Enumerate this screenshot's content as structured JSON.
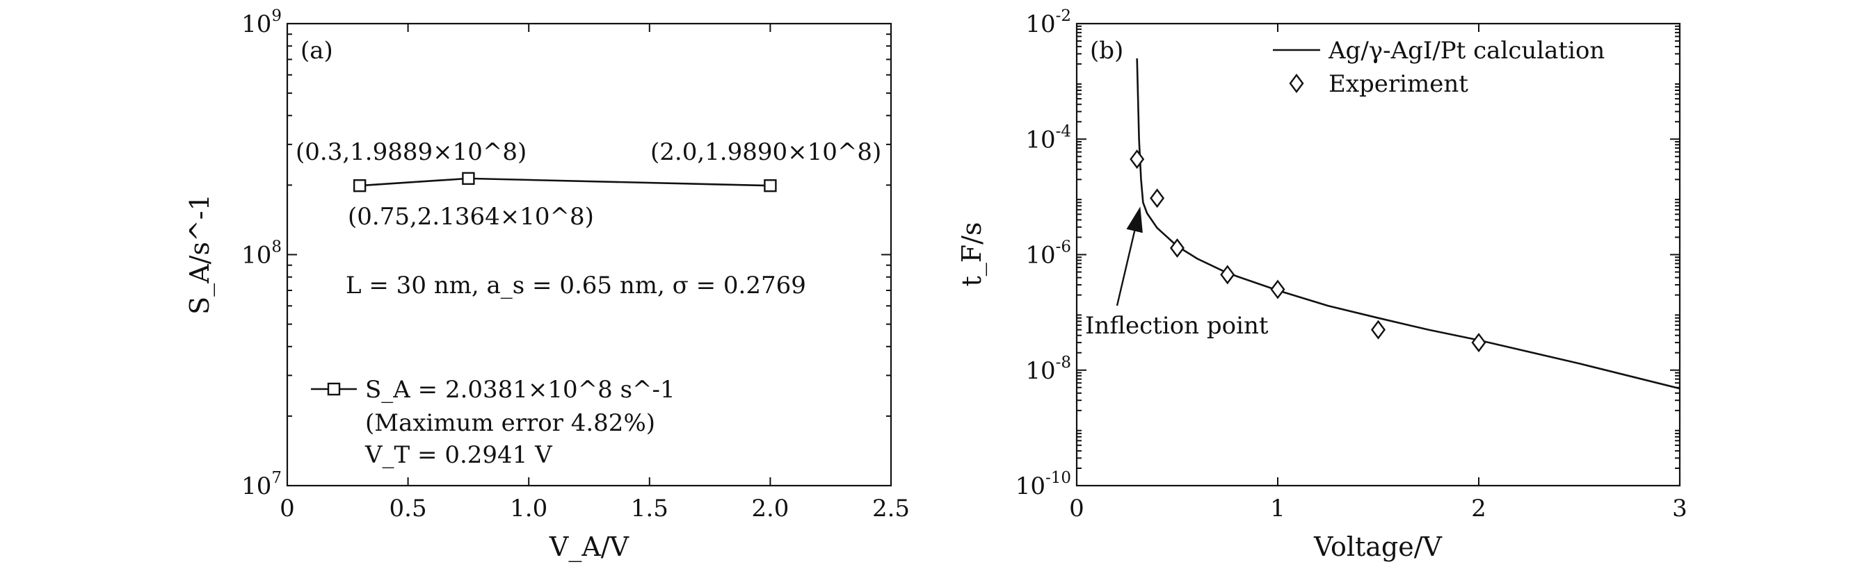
{
  "chart_data": [
    {
      "type": "line",
      "panel_label": "(a)",
      "xlabel": "V_A/V",
      "ylabel": "S_A/s^-1",
      "xlim": [
        0,
        2.5
      ],
      "ylim": [
        10000000,
        1000000000
      ],
      "yscale": "log",
      "x_ticks": [
        "0",
        "0.5",
        "1.0",
        "1.5",
        "2.0",
        "2.5"
      ],
      "y_ticks": [
        "10^7",
        "10^8",
        "10^9"
      ],
      "series": [
        {
          "name": "S_A = 2.0381×10^8 s^-1",
          "x": [
            0.3,
            0.75,
            2.0
          ],
          "y": [
            198890000,
            213640000,
            198900000
          ]
        }
      ],
      "point_labels": [
        "(0.3,1.9889×10^8)",
        "(0.75,2.1364×10^8)",
        "(2.0,1.9890×10^8)"
      ],
      "annotation": "L = 30 nm, a_s = 0.65 nm, σ = 0.2769",
      "legend_lines": [
        "S_A = 2.0381×10^8 s^-1",
        "(Maximum error 4.82%)",
        "V_T = 0.2941 V"
      ],
      "legend_position": "bottom-left"
    },
    {
      "type": "line",
      "panel_label": "(b)",
      "xlabel": "Voltage/V",
      "ylabel": "t_F/s",
      "xlim": [
        0,
        3
      ],
      "ylim": [
        1e-10,
        0.01
      ],
      "yscale": "log",
      "x_ticks": [
        "0",
        "1",
        "2",
        "3"
      ],
      "y_ticks": [
        "10^-10",
        "10^-8",
        "10^-6",
        "10^-4",
        "10^-2"
      ],
      "series": [
        {
          "name": "Ag/γ-AgI/Pt calculation",
          "style": "line",
          "x": [
            0.3,
            0.31,
            0.32,
            0.33,
            0.35,
            0.4,
            0.5,
            0.6,
            0.75,
            1.0,
            1.25,
            1.5,
            1.75,
            2.0,
            2.5,
            3.0
          ],
          "y": [
            0.0025,
            0.0001,
            2e-05,
            8e-06,
            5.2e-06,
            2.9e-06,
            1.4e-06,
            8.5e-07,
            4.8e-07,
            2.4e-07,
            1.3e-07,
            8e-08,
            5e-08,
            3.3e-08,
            1.3e-08,
            4.8e-09
          ]
        },
        {
          "name": "Experiment",
          "style": "marker",
          "x": [
            0.3,
            0.4,
            0.5,
            0.75,
            1.0,
            1.5,
            2.0
          ],
          "y": [
            4.5e-05,
            9.5e-06,
            1.3e-06,
            4.5e-07,
            2.5e-07,
            5e-08,
            3e-08
          ]
        }
      ],
      "annotation": "Inflection point",
      "annotation_target": {
        "x": 0.33,
        "y": 8e-06
      },
      "legend_position": "top-right"
    }
  ]
}
